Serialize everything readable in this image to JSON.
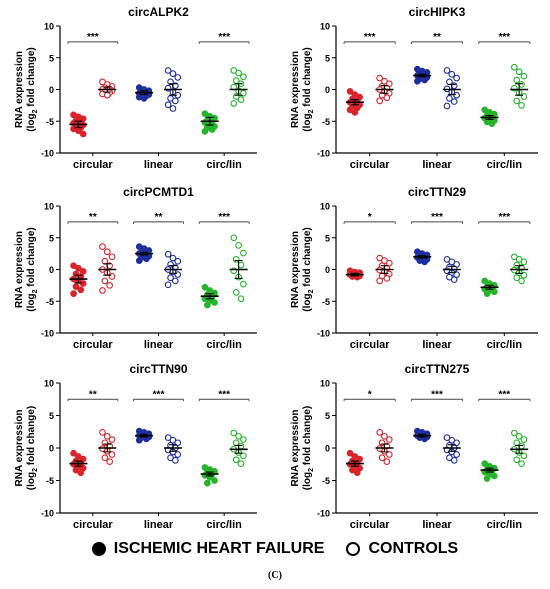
{
  "ylabel_line1": "RNA expression",
  "ylabel_line2_prefix": "(log",
  "ylabel_line2_sub": "2",
  "ylabel_line2_suffix": " fold change)",
  "categories": [
    "circular",
    "linear",
    "circ/lin"
  ],
  "colors": {
    "circular": "#d9242b",
    "linear": "#1f2f9e",
    "circ/lin": "#24b52a"
  },
  "legend": {
    "filled_label": "ISCHEMIC HEART FAILURE",
    "open_label": "CONTROLS"
  },
  "caption": "(C)",
  "chart_data": [
    {
      "type": "scatter",
      "title": "circALPK2",
      "ylim": [
        -10,
        10
      ],
      "yticks": [
        10,
        5,
        0,
        -5,
        -10
      ],
      "groups": [
        {
          "category": "circular",
          "condition": "ischemic heart failure",
          "values": [
            -4.0,
            -4.3,
            -4.6,
            -4.9,
            -5.1,
            -5.3,
            -5.5,
            -5.6,
            -5.8,
            -6.0,
            -6.2,
            -6.5,
            -7.0
          ],
          "mean": -5.5,
          "sem": 0.5
        },
        {
          "category": "circular",
          "condition": "controls",
          "values": [
            1.2,
            0.8,
            0.5,
            0.3,
            0.1,
            0.0,
            -0.1,
            -0.2,
            -0.3,
            -0.5,
            -0.7,
            -0.9
          ],
          "mean": 0.0,
          "sem": 0.4
        },
        {
          "category": "linear",
          "condition": "ischemic heart failure",
          "values": [
            0.3,
            0.0,
            -0.2,
            -0.4,
            -0.5,
            -0.6,
            -0.7,
            -0.8,
            -0.9,
            -1.0,
            -1.2,
            -1.4
          ],
          "mean": -0.5,
          "sem": 0.3
        },
        {
          "category": "linear",
          "condition": "controls",
          "values": [
            3.0,
            2.5,
            1.9,
            1.2,
            0.6,
            0.2,
            -0.4,
            -0.9,
            -1.4,
            -1.8,
            -2.4,
            -3.0
          ],
          "mean": 0.0,
          "sem": 0.9
        },
        {
          "category": "circ/lin",
          "condition": "ischemic heart failure",
          "values": [
            -3.8,
            -4.2,
            -4.5,
            -4.8,
            -5.0,
            -5.2,
            -5.5,
            -5.8,
            -6.0,
            -6.3,
            -6.6
          ],
          "mean": -5.0,
          "sem": 0.6
        },
        {
          "category": "circ/lin",
          "condition": "controls",
          "values": [
            3.0,
            2.6,
            2.0,
            1.4,
            0.9,
            0.4,
            -0.2,
            -0.6,
            -1.1,
            -1.6,
            -2.2
          ],
          "mean": 0.0,
          "sem": 0.9
        }
      ],
      "significance": [
        {
          "comparison": "circular",
          "label": "***"
        },
        {
          "comparison": "circ/lin",
          "label": "***"
        }
      ]
    },
    {
      "type": "scatter",
      "title": "circHIPK3",
      "ylim": [
        -10,
        10
      ],
      "yticks": [
        10,
        5,
        0,
        -5,
        -10
      ],
      "groups": [
        {
          "category": "circular",
          "condition": "ischemic heart failure",
          "values": [
            -0.3,
            -0.8,
            -1.2,
            -1.5,
            -1.8,
            -2.0,
            -2.2,
            -2.4,
            -2.6,
            -2.9,
            -3.2,
            -3.6
          ],
          "mean": -2.0,
          "sem": 0.4
        },
        {
          "category": "circular",
          "condition": "controls",
          "values": [
            1.8,
            1.3,
            0.9,
            0.5,
            0.2,
            0.0,
            -0.3,
            -0.6,
            -0.9,
            -1.3,
            -1.8
          ],
          "mean": 0.0,
          "sem": 0.6
        },
        {
          "category": "linear",
          "condition": "ischemic heart failure",
          "values": [
            3.2,
            2.9,
            2.7,
            2.5,
            2.3,
            2.2,
            2.0,
            1.9,
            1.7,
            1.5,
            1.3
          ],
          "mean": 2.2,
          "sem": 0.2
        },
        {
          "category": "linear",
          "condition": "controls",
          "values": [
            3.0,
            2.4,
            1.8,
            1.2,
            0.6,
            0.1,
            -0.4,
            -0.9,
            -1.4,
            -1.9,
            -2.6
          ],
          "mean": 0.0,
          "sem": 0.8
        },
        {
          "category": "circ/lin",
          "condition": "ischemic heart failure",
          "values": [
            -3.2,
            -3.6,
            -3.9,
            -4.1,
            -4.3,
            -4.5,
            -4.7,
            -4.9,
            -5.1,
            -5.4
          ],
          "mean": -4.4,
          "sem": 0.3
        },
        {
          "category": "circ/lin",
          "condition": "controls",
          "values": [
            3.5,
            2.8,
            2.1,
            1.5,
            0.8,
            0.2,
            -0.5,
            -1.1,
            -1.8,
            -2.5
          ],
          "mean": 0.0,
          "sem": 0.9
        }
      ],
      "significance": [
        {
          "comparison": "circular",
          "label": "***"
        },
        {
          "comparison": "linear",
          "label": "**"
        },
        {
          "comparison": "circ/lin",
          "label": "***"
        }
      ]
    },
    {
      "type": "scatter",
      "title": "circPCMTD1",
      "ylim": [
        -10,
        10
      ],
      "yticks": [
        10,
        5,
        0,
        -5,
        -10
      ],
      "groups": [
        {
          "category": "circular",
          "condition": "ischemic heart failure",
          "values": [
            0.6,
            0.2,
            -0.3,
            -0.7,
            -1.1,
            -1.5,
            -1.8,
            -2.2,
            -2.7,
            -3.2,
            -3.8
          ],
          "mean": -1.5,
          "sem": 0.6
        },
        {
          "category": "circular",
          "condition": "controls",
          "values": [
            3.6,
            2.8,
            2.0,
            1.3,
            0.6,
            0.0,
            -0.5,
            -1.1,
            -1.8,
            -2.5,
            -3.3
          ],
          "mean": 0.0,
          "sem": 0.9
        },
        {
          "category": "linear",
          "condition": "ischemic heart failure",
          "values": [
            3.6,
            3.3,
            3.0,
            2.8,
            2.6,
            2.5,
            2.3,
            2.1,
            1.9,
            1.7,
            1.4
          ],
          "mean": 2.5,
          "sem": 0.2
        },
        {
          "category": "linear",
          "condition": "controls",
          "values": [
            2.4,
            1.8,
            1.3,
            0.8,
            0.3,
            0.0,
            -0.4,
            -0.8,
            -1.3,
            -1.8,
            -2.4
          ],
          "mean": 0.0,
          "sem": 0.6
        },
        {
          "category": "circ/lin",
          "condition": "ischemic heart failure",
          "values": [
            -2.8,
            -3.3,
            -3.7,
            -4.0,
            -4.3,
            -4.6,
            -4.9,
            -5.2,
            -5.6
          ],
          "mean": -4.2,
          "sem": 0.4
        },
        {
          "category": "circ/lin",
          "condition": "controls",
          "values": [
            5.0,
            3.8,
            2.6,
            1.6,
            0.7,
            -0.2,
            -1.2,
            -2.3,
            -3.6,
            -4.6
          ],
          "mean": 0.0,
          "sem": 1.4
        }
      ],
      "significance": [
        {
          "comparison": "circular",
          "label": "**"
        },
        {
          "comparison": "linear",
          "label": "**"
        },
        {
          "comparison": "circ/lin",
          "label": "***"
        }
      ]
    },
    {
      "type": "scatter",
      "title": "circTTN29",
      "ylim": [
        -10,
        10
      ],
      "yticks": [
        10,
        5,
        0,
        -5,
        -10
      ],
      "groups": [
        {
          "category": "circular",
          "condition": "ischemic heart failure",
          "values": [
            -0.2,
            -0.4,
            -0.5,
            -0.6,
            -0.7,
            -0.8,
            -0.9,
            -1.0,
            -1.1,
            -1.2
          ],
          "mean": -0.8,
          "sem": 0.2
        },
        {
          "category": "circular",
          "condition": "controls",
          "values": [
            1.8,
            1.4,
            1.0,
            0.6,
            0.2,
            -0.1,
            -0.4,
            -0.7,
            -1.0,
            -1.4,
            -1.8
          ],
          "mean": 0.0,
          "sem": 0.6
        },
        {
          "category": "linear",
          "condition": "ischemic heart failure",
          "values": [
            2.8,
            2.5,
            2.3,
            2.1,
            2.0,
            1.9,
            1.7,
            1.6,
            1.4,
            1.2
          ],
          "mean": 2.0,
          "sem": 0.2
        },
        {
          "category": "linear",
          "condition": "controls",
          "values": [
            1.6,
            1.2,
            0.8,
            0.4,
            0.1,
            -0.2,
            -0.5,
            -0.8,
            -1.2,
            -1.6
          ],
          "mean": 0.0,
          "sem": 0.5
        },
        {
          "category": "circ/lin",
          "condition": "ischemic heart failure",
          "values": [
            -1.8,
            -2.2,
            -2.5,
            -2.7,
            -2.9,
            -3.1,
            -3.3,
            -3.5,
            -3.8
          ],
          "mean": -2.8,
          "sem": 0.3
        },
        {
          "category": "circ/lin",
          "condition": "controls",
          "values": [
            2.0,
            1.6,
            1.2,
            0.7,
            0.3,
            -0.1,
            -0.5,
            -0.9,
            -1.3,
            -1.8
          ],
          "mean": 0.0,
          "sem": 0.6
        }
      ],
      "significance": [
        {
          "comparison": "circular",
          "label": "*"
        },
        {
          "comparison": "linear",
          "label": "***"
        },
        {
          "comparison": "circ/lin",
          "label": "***"
        }
      ]
    },
    {
      "type": "scatter",
      "title": "circTTN90",
      "ylim": [
        -10,
        10
      ],
      "yticks": [
        10,
        5,
        0,
        -5,
        -10
      ],
      "groups": [
        {
          "category": "circular",
          "condition": "ischemic heart failure",
          "values": [
            -0.8,
            -1.3,
            -1.7,
            -2.0,
            -2.3,
            -2.5,
            -2.8,
            -3.1,
            -3.4,
            -3.8
          ],
          "mean": -2.4,
          "sem": 0.4
        },
        {
          "category": "circular",
          "condition": "controls",
          "values": [
            2.4,
            1.8,
            1.3,
            0.8,
            0.3,
            -0.1,
            -0.5,
            -1.0,
            -1.5,
            -2.1
          ],
          "mean": 0.0,
          "sem": 0.6
        },
        {
          "category": "linear",
          "condition": "ischemic heart failure",
          "values": [
            2.6,
            2.4,
            2.2,
            2.1,
            2.0,
            1.9,
            1.8,
            1.7,
            1.6,
            1.4,
            1.2
          ],
          "mean": 1.9,
          "sem": 0.2
        },
        {
          "category": "linear",
          "condition": "controls",
          "values": [
            1.6,
            1.2,
            0.8,
            0.4,
            0.0,
            -0.3,
            -0.6,
            -1.0,
            -1.5,
            -1.9
          ],
          "mean": 0.0,
          "sem": 0.5
        },
        {
          "category": "circ/lin",
          "condition": "ischemic heart failure",
          "values": [
            -3.0,
            -3.3,
            -3.6,
            -3.8,
            -4.0,
            -4.2,
            -4.5,
            -5.0,
            -5.4
          ],
          "mean": -4.0,
          "sem": 0.3
        },
        {
          "category": "circ/lin",
          "condition": "controls",
          "values": [
            2.3,
            1.8,
            1.3,
            0.8,
            0.3,
            -0.2,
            -0.7,
            -1.2,
            -1.8,
            -2.4
          ],
          "mean": -0.2,
          "sem": 0.6
        }
      ],
      "significance": [
        {
          "comparison": "circular",
          "label": "**"
        },
        {
          "comparison": "linear",
          "label": "***"
        },
        {
          "comparison": "circ/lin",
          "label": "***"
        }
      ]
    },
    {
      "type": "scatter",
      "title": "circTTN275",
      "ylim": [
        -10,
        10
      ],
      "yticks": [
        10,
        5,
        0,
        -5,
        -10
      ],
      "groups": [
        {
          "category": "circular",
          "condition": "ischemic heart failure",
          "values": [
            -0.8,
            -1.3,
            -1.7,
            -2.0,
            -2.3,
            -2.5,
            -2.8,
            -3.1,
            -3.4,
            -3.8
          ],
          "mean": -2.4,
          "sem": 0.4
        },
        {
          "category": "circular",
          "condition": "controls",
          "values": [
            2.4,
            1.8,
            1.3,
            0.8,
            0.3,
            -0.1,
            -0.5,
            -1.0,
            -1.5,
            -2.1
          ],
          "mean": 0.0,
          "sem": 0.6
        },
        {
          "category": "linear",
          "condition": "ischemic heart failure",
          "values": [
            2.6,
            2.4,
            2.2,
            2.1,
            2.0,
            1.9,
            1.8,
            1.7,
            1.6,
            1.4
          ],
          "mean": 1.9,
          "sem": 0.2
        },
        {
          "category": "linear",
          "condition": "controls",
          "values": [
            1.6,
            1.2,
            0.8,
            0.4,
            0.0,
            -0.3,
            -0.6,
            -1.0,
            -1.5,
            -1.9
          ],
          "mean": 0.0,
          "sem": 0.5
        },
        {
          "category": "circ/lin",
          "condition": "ischemic heart failure",
          "values": [
            -2.4,
            -2.8,
            -3.1,
            -3.3,
            -3.5,
            -3.7,
            -4.0,
            -4.3,
            -4.7
          ],
          "mean": -3.4,
          "sem": 0.3
        },
        {
          "category": "circ/lin",
          "condition": "controls",
          "values": [
            2.3,
            1.8,
            1.3,
            0.8,
            0.3,
            -0.2,
            -0.7,
            -1.2,
            -1.8,
            -2.4
          ],
          "mean": -0.2,
          "sem": 0.6
        }
      ],
      "significance": [
        {
          "comparison": "circular",
          "label": "*"
        },
        {
          "comparison": "linear",
          "label": "***"
        },
        {
          "comparison": "circ/lin",
          "label": "***"
        }
      ]
    }
  ]
}
